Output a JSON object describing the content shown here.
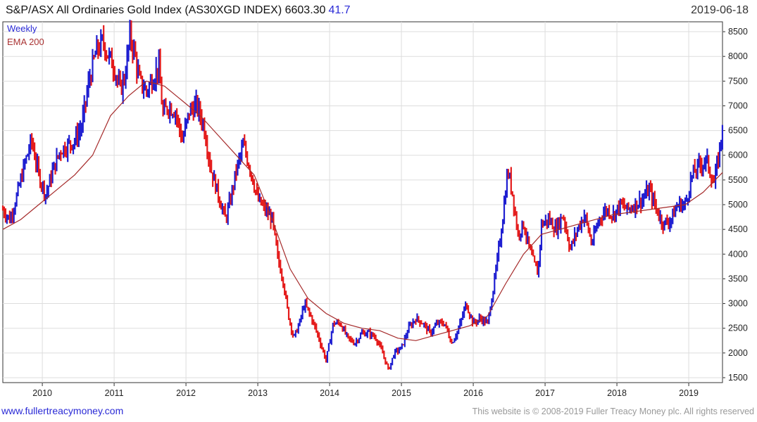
{
  "header": {
    "title": "S&P/ASX All Ordinaries Gold Index (AS30XGD INDEX) 6603.30",
    "change": "41.7",
    "date": "2019-06-18"
  },
  "footer": {
    "left": "www.fullertreacymoney.com",
    "right": "This website is © 2008-2019 Fuller Treacy Money plc. All rights reserved"
  },
  "colors": {
    "up": "#1f1fd1",
    "down": "#e41b1b",
    "ema": "#a52a2a",
    "grid": "#dddddd",
    "frame": "#333333"
  },
  "chart_data": {
    "type": "line",
    "legend": [
      "Weekly",
      "EMA 200"
    ],
    "legend_position": "top-left",
    "grid": true,
    "y_axis_side": "right",
    "xlim": [
      2009.45,
      2019.47
    ],
    "ylim": [
      1400,
      8700
    ],
    "y_ticks": [
      1500,
      2000,
      2500,
      3000,
      3500,
      4000,
      4500,
      5000,
      5500,
      6000,
      6500,
      7000,
      7500,
      8000,
      8500
    ],
    "x_ticks": [
      2010,
      2011,
      2012,
      2013,
      2014,
      2015,
      2016,
      2017,
      2018,
      2019
    ],
    "series": [
      {
        "name": "Weekly",
        "x": [
          2009.45,
          2009.55,
          2009.65,
          2009.75,
          2009.85,
          2009.95,
          2010.05,
          2010.15,
          2010.25,
          2010.35,
          2010.45,
          2010.55,
          2010.65,
          2010.75,
          2010.85,
          2010.92,
          2011.0,
          2011.08,
          2011.15,
          2011.22,
          2011.28,
          2011.35,
          2011.45,
          2011.55,
          2011.62,
          2011.68,
          2011.75,
          2011.85,
          2011.95,
          2012.05,
          2012.15,
          2012.25,
          2012.35,
          2012.45,
          2012.55,
          2012.62,
          2012.7,
          2012.8,
          2012.9,
          2013.0,
          2013.1,
          2013.2,
          2013.28,
          2013.35,
          2013.42,
          2013.5,
          2013.58,
          2013.65,
          2013.75,
          2013.85,
          2013.95,
          2014.05,
          2014.15,
          2014.25,
          2014.35,
          2014.45,
          2014.55,
          2014.65,
          2014.75,
          2014.82,
          2014.9,
          2015.0,
          2015.1,
          2015.2,
          2015.3,
          2015.4,
          2015.5,
          2015.6,
          2015.7,
          2015.8,
          2015.9,
          2016.0,
          2016.1,
          2016.2,
          2016.3,
          2016.4,
          2016.48,
          2016.55,
          2016.62,
          2016.7,
          2016.8,
          2016.9,
          2016.95,
          2017.05,
          2017.15,
          2017.25,
          2017.35,
          2017.45,
          2017.55,
          2017.65,
          2017.75,
          2017.85,
          2017.95,
          2018.05,
          2018.15,
          2018.25,
          2018.35,
          2018.45,
          2018.55,
          2018.65,
          2018.75,
          2018.85,
          2018.95,
          2019.05,
          2019.15,
          2019.25,
          2019.35,
          2019.42,
          2019.47
        ],
        "values": [
          4900,
          4700,
          5200,
          5800,
          6300,
          5600,
          5200,
          5700,
          6100,
          6200,
          6300,
          6600,
          7500,
          8100,
          8300,
          8000,
          7800,
          7300,
          7600,
          8400,
          8100,
          7500,
          7300,
          7600,
          7800,
          6800,
          7000,
          6900,
          6300,
          6900,
          7000,
          6600,
          5700,
          5200,
          4700,
          5100,
          5700,
          6200,
          5700,
          5100,
          4900,
          4700,
          3900,
          3500,
          2800,
          2300,
          2600,
          3000,
          2700,
          2300,
          1850,
          2600,
          2600,
          2300,
          2200,
          2400,
          2400,
          2300,
          1950,
          1650,
          2000,
          2100,
          2500,
          2700,
          2600,
          2400,
          2600,
          2600,
          2200,
          2500,
          3000,
          2600,
          2700,
          2600,
          3500,
          4600,
          5700,
          5200,
          4400,
          4600,
          4000,
          3600,
          4600,
          4700,
          4500,
          4800,
          4100,
          4500,
          4800,
          4200,
          4700,
          4900,
          4800,
          5000,
          4900,
          5000,
          5100,
          5300,
          4900,
          4600,
          4700,
          5000,
          5000,
          5600,
          5800,
          5900,
          5400,
          6000,
          6600
        ]
      },
      {
        "name": "EMA 200",
        "x": [
          2009.45,
          2009.7,
          2009.95,
          2010.2,
          2010.45,
          2010.7,
          2010.95,
          2011.2,
          2011.45,
          2011.7,
          2011.95,
          2012.2,
          2012.45,
          2012.7,
          2012.95,
          2013.2,
          2013.45,
          2013.7,
          2013.95,
          2014.2,
          2014.45,
          2014.7,
          2014.95,
          2015.2,
          2015.45,
          2015.7,
          2015.95,
          2016.2,
          2016.45,
          2016.7,
          2016.95,
          2017.2,
          2017.45,
          2017.7,
          2017.95,
          2018.2,
          2018.45,
          2018.7,
          2018.95,
          2019.2,
          2019.47
        ],
        "values": [
          4500,
          4700,
          5000,
          5300,
          5600,
          6000,
          6800,
          7200,
          7500,
          7400,
          7100,
          6800,
          6400,
          6000,
          5600,
          4700,
          3700,
          3100,
          2800,
          2600,
          2500,
          2450,
          2300,
          2250,
          2350,
          2450,
          2550,
          2750,
          3400,
          4000,
          4400,
          4500,
          4600,
          4700,
          4800,
          4850,
          4900,
          4950,
          5000,
          5250,
          5650
        ]
      }
    ]
  }
}
